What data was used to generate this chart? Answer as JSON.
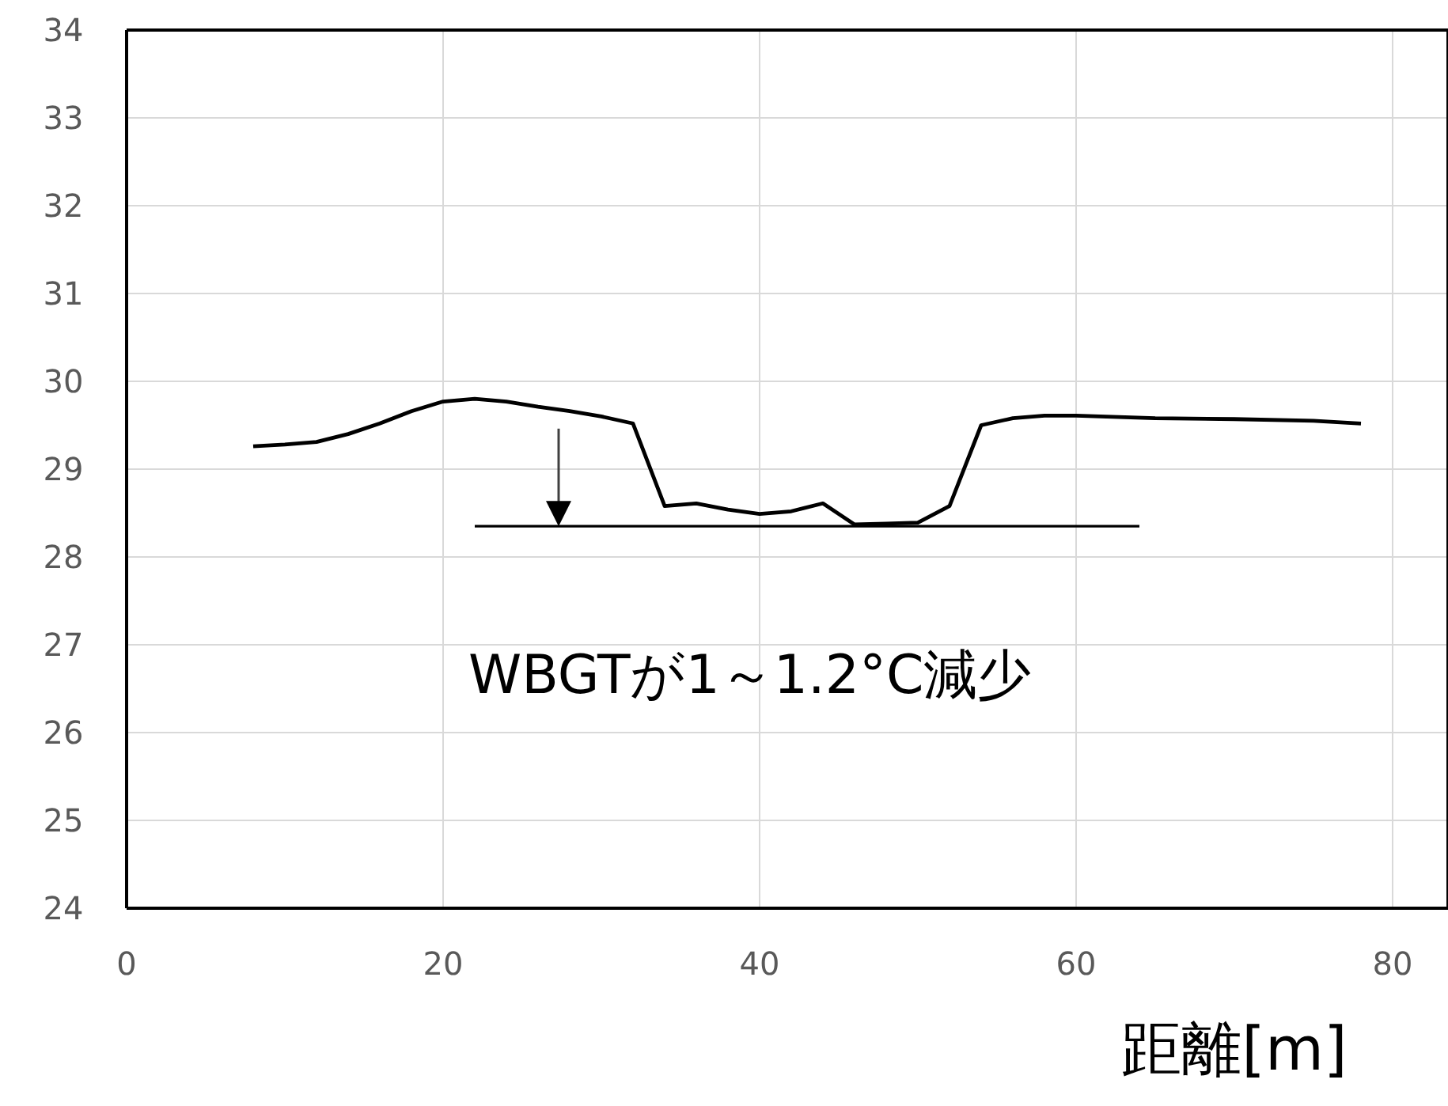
{
  "chart_data": {
    "type": "line",
    "xlabel": "距離[m]",
    "xlim": [
      0,
      83.5
    ],
    "xticks": [
      0,
      20,
      40,
      60,
      80
    ],
    "ylim": [
      24,
      34
    ],
    "yticks": [
      24,
      25,
      26,
      27,
      28,
      29,
      30,
      31,
      32,
      33,
      34
    ],
    "grid": true,
    "series": [
      {
        "color": "#000000",
        "x": [
          8,
          10,
          12,
          14,
          16,
          18,
          20,
          22,
          24,
          26,
          28,
          30,
          32,
          34,
          36,
          38,
          40,
          42,
          44,
          46,
          48,
          50,
          52,
          54,
          56,
          58,
          60,
          65,
          70,
          75,
          78
        ],
        "values": [
          29.26,
          29.28,
          29.31,
          29.4,
          29.52,
          29.66,
          29.77,
          29.8,
          29.77,
          29.71,
          29.66,
          29.6,
          29.52,
          28.58,
          28.61,
          28.54,
          28.49,
          28.52,
          28.61,
          28.37,
          28.38,
          28.39,
          28.58,
          29.5,
          29.58,
          29.61,
          29.61,
          29.58,
          29.57,
          29.55,
          29.52
        ]
      },
      {
        "color": "#000000",
        "x": [
          22,
          64
        ],
        "values": [
          28.35,
          28.35
        ]
      }
    ],
    "annotations": [
      {
        "text": "WBGTが1～1.2°C減少",
        "x": 27.3,
        "y": 28.35
      }
    ]
  }
}
